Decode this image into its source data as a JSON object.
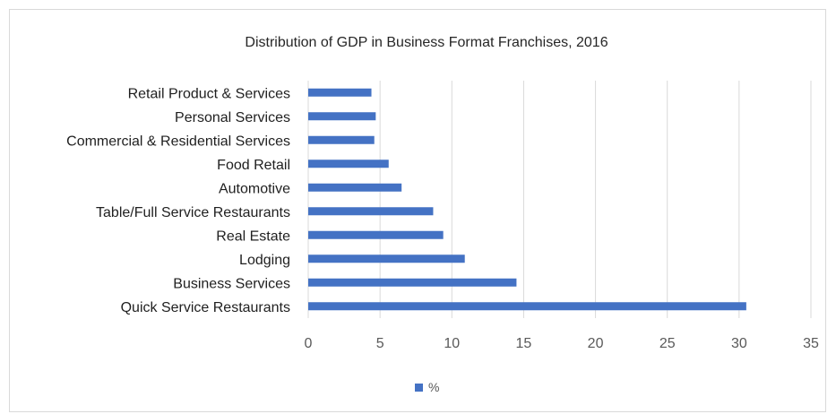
{
  "chart_data": {
    "type": "bar",
    "orientation": "horizontal",
    "title": "Distribution of GDP in Business Format Franchises, 2016",
    "categories": [
      "Quick Service Restaurants",
      "Business Services",
      "Lodging",
      "Real Estate",
      "Table/Full Service Restaurants",
      "Automotive",
      "Food Retail",
      "Commercial & Residential Services",
      "Personal Services",
      "Retail Product & Services"
    ],
    "series": [
      {
        "name": "%",
        "color": "#4472c4",
        "values": [
          30.5,
          14.5,
          10.9,
          9.4,
          8.7,
          6.5,
          5.6,
          4.6,
          4.7,
          4.4
        ]
      }
    ],
    "xlim": [
      0,
      35
    ],
    "xticks": [
      "0",
      "5",
      "10",
      "15",
      "20",
      "25",
      "30",
      "35"
    ],
    "grid": true,
    "legend_position": "bottom"
  }
}
